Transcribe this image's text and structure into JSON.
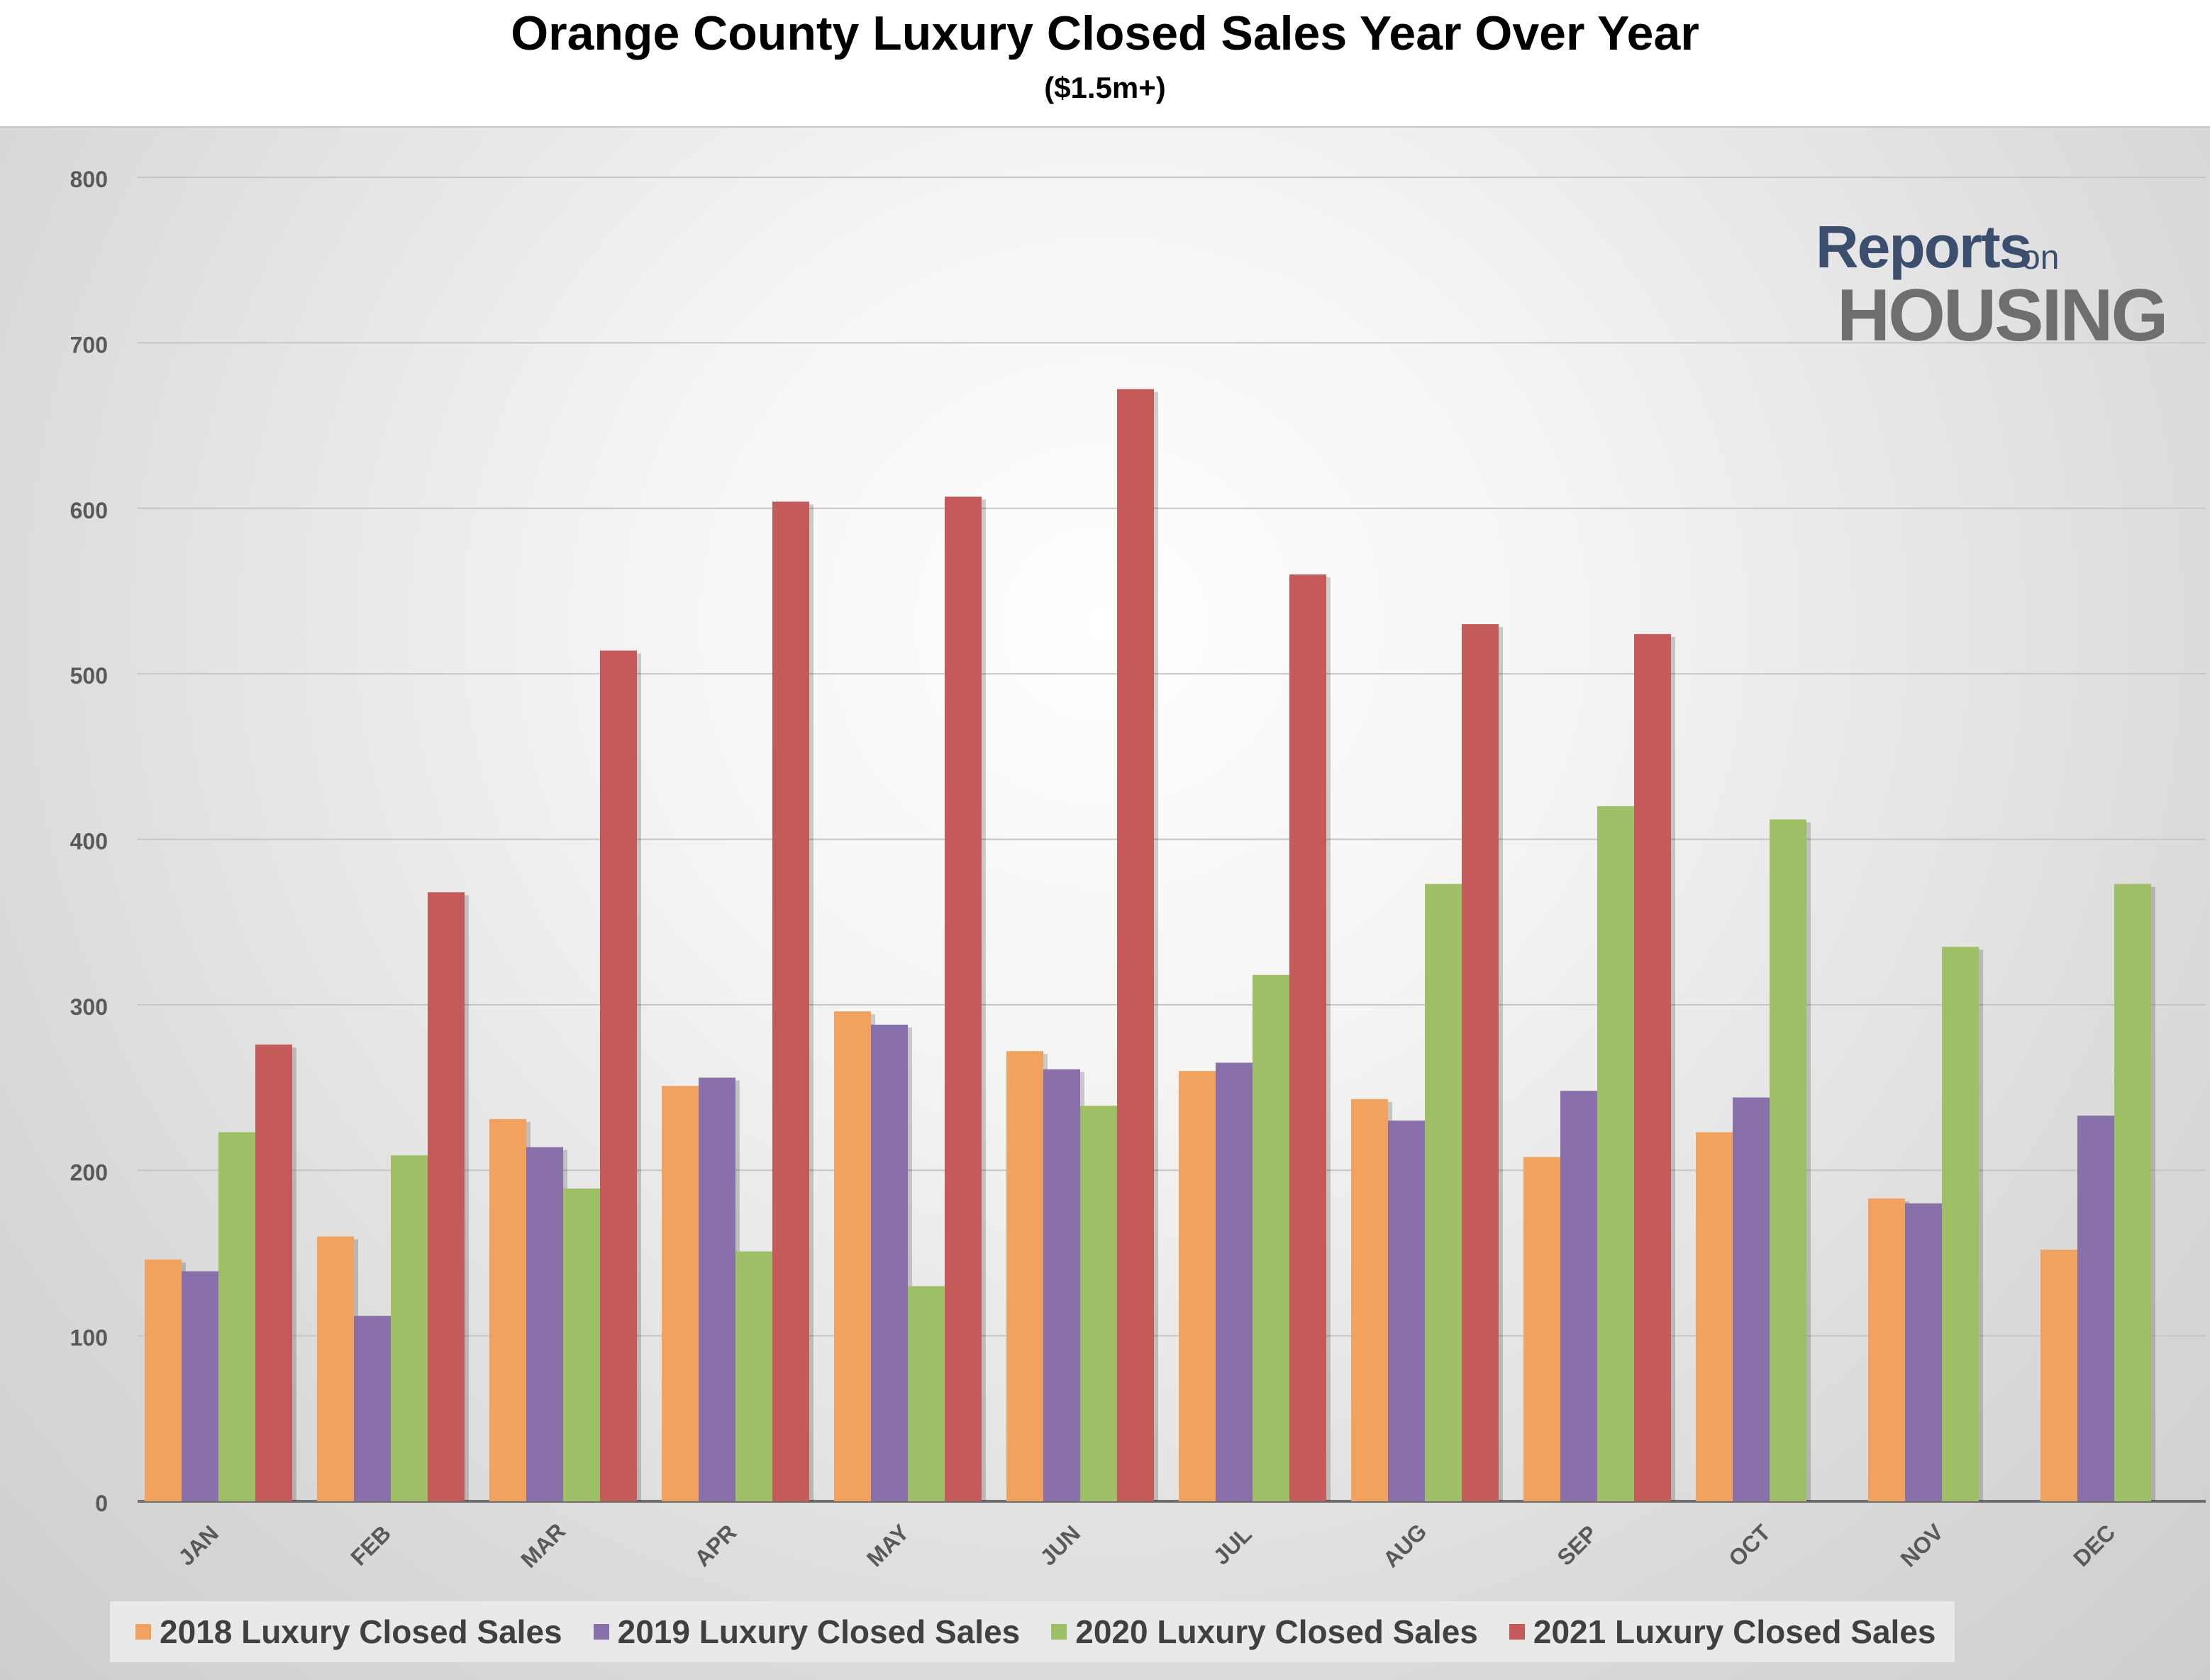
{
  "chart_data": {
    "type": "bar",
    "title": "Orange County Luxury Closed Sales Year Over Year",
    "subtitle": "($1.5m+)",
    "categories": [
      "JAN",
      "FEB",
      "MAR",
      "APR",
      "MAY",
      "JUN",
      "JUL",
      "AUG",
      "SEP",
      "OCT",
      "NOV",
      "DEC"
    ],
    "series": [
      {
        "name": "2018 Luxury Closed Sales",
        "color": "#f0a25e",
        "values": [
          146,
          160,
          231,
          251,
          296,
          272,
          260,
          243,
          208,
          223,
          183,
          152
        ]
      },
      {
        "name": "2019 Luxury Closed Sales",
        "color": "#8a70aa",
        "values": [
          139,
          112,
          214,
          256,
          288,
          261,
          265,
          230,
          248,
          244,
          180,
          233
        ]
      },
      {
        "name": "2020 Luxury Closed Sales",
        "color": "#9fbf66",
        "values": [
          223,
          209,
          189,
          151,
          130,
          239,
          318,
          373,
          420,
          412,
          335,
          373
        ]
      },
      {
        "name": "2021 Luxury Closed Sales",
        "color": "#c55a5a",
        "values": [
          276,
          368,
          514,
          604,
          607,
          672,
          560,
          530,
          524,
          null,
          null,
          null
        ]
      }
    ],
    "ylim": [
      0,
      800
    ],
    "yticks": [
      0,
      100,
      200,
      300,
      400,
      500,
      600,
      700,
      800
    ],
    "xlabel": "",
    "ylabel": "",
    "grid": true,
    "legend_position": "bottom"
  },
  "logo": {
    "line1": "Reports",
    "line1_suffix": "on",
    "line2": "HOUSING"
  }
}
